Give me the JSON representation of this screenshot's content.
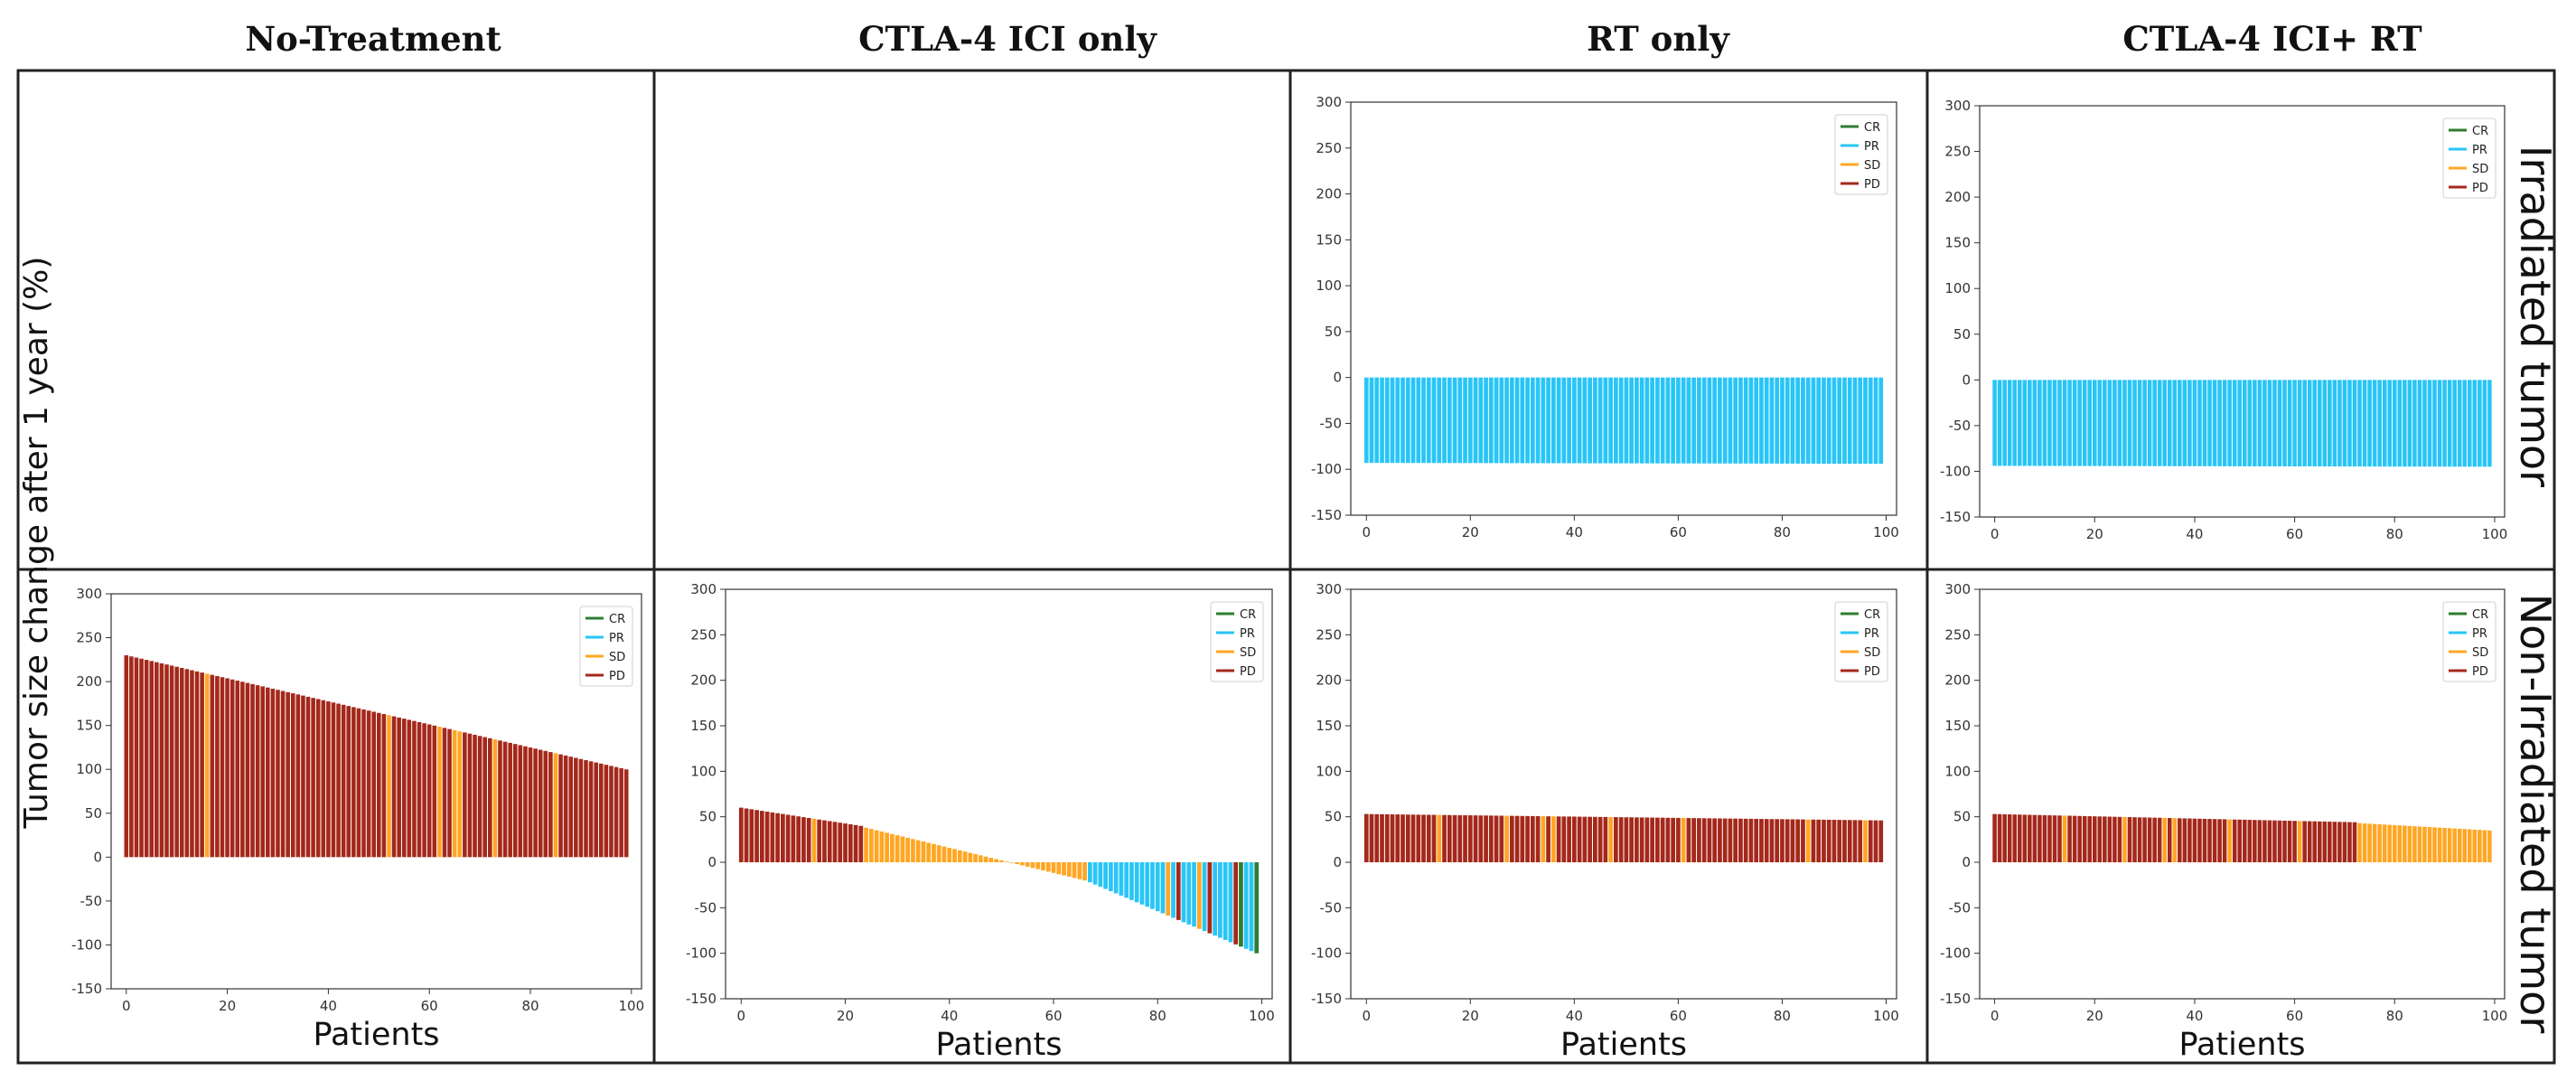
{
  "figure": {
    "column_titles": [
      "No-Treatment",
      "CTLA-4 ICI only",
      "RT only",
      "CTLA-4 ICI+ RT"
    ],
    "row_labels": [
      "Irradiated tumor",
      "Non-Irradiated tumor"
    ],
    "y_label": "Tumor size change after 1 year (%)"
  },
  "colors": {
    "CR": "#2e7d32",
    "PR": "#29c5f6",
    "SD": "#ffa623",
    "PD": "#a4281b"
  },
  "chart_data": [
    {
      "id": "rt-irradiated",
      "type": "bar",
      "column": "RT only",
      "row": "Irradiated tumor",
      "xlabel": "",
      "ylabel": "",
      "ylim": [
        -150,
        300
      ],
      "xlim": [
        -3,
        102
      ],
      "yticks": [
        "300",
        "250",
        "200",
        "150",
        "100",
        "50",
        "0",
        "-50",
        "-100",
        "-150"
      ],
      "xticks": [
        "0",
        "20",
        "40",
        "60",
        "80",
        "100"
      ],
      "legend": [
        "CR",
        "PR",
        "SD",
        "PD"
      ],
      "legend_position": "top-right",
      "n_patients": 100,
      "series": [
        {
          "name": "tumor size change (%)",
          "start": -93,
          "end": -94,
          "category": "PR"
        }
      ]
    },
    {
      "id": "ici-rt-irradiated",
      "type": "bar",
      "column": "CTLA-4 ICI+ RT",
      "row": "Irradiated tumor",
      "xlabel": "",
      "ylabel": "",
      "ylim": [
        -150,
        300
      ],
      "xlim": [
        -3,
        102
      ],
      "yticks": [
        "300",
        "250",
        "200",
        "150",
        "100",
        "50",
        "0",
        "-50",
        "-100",
        "-150"
      ],
      "xticks": [
        "0",
        "20",
        "40",
        "60",
        "80",
        "100"
      ],
      "legend": [
        "CR",
        "PR",
        "SD",
        "PD"
      ],
      "legend_position": "top-right",
      "n_patients": 100,
      "series": [
        {
          "name": "tumor size change (%)",
          "start": -94,
          "end": -95,
          "category": "PR"
        }
      ]
    },
    {
      "id": "no-treatment-nonirradiated",
      "type": "bar",
      "column": "No-Treatment",
      "row": "Non-Irradiated tumor",
      "xlabel": "Patients",
      "ylabel": "",
      "ylim": [
        -150,
        300
      ],
      "xlim": [
        -3,
        102
      ],
      "yticks": [
        "300",
        "250",
        "200",
        "150",
        "100",
        "50",
        "0",
        "-50",
        "-100",
        "-150"
      ],
      "xticks": [
        "0",
        "20",
        "40",
        "60",
        "80",
        "100"
      ],
      "legend": [
        "CR",
        "PR",
        "SD",
        "PD"
      ],
      "legend_position": "top-right",
      "n_patients": 100,
      "series": [
        {
          "name": "tumor size change (%)",
          "start": 230,
          "end": 100,
          "category": "PD",
          "exceptions": [
            {
              "category": "SD",
              "indices": [
                16,
                52,
                62,
                65,
                66,
                73,
                85
              ]
            }
          ]
        }
      ]
    },
    {
      "id": "ici-nonirradiated",
      "type": "bar",
      "column": "CTLA-4 ICI only",
      "row": "Non-Irradiated tumor",
      "xlabel": "Patients",
      "ylabel": "",
      "ylim": [
        -150,
        300
      ],
      "xlim": [
        -3,
        102
      ],
      "yticks": [
        "300",
        "250",
        "200",
        "150",
        "100",
        "50",
        "0",
        "-50",
        "-100",
        "-150"
      ],
      "xticks": [
        "0",
        "20",
        "40",
        "60",
        "80",
        "100"
      ],
      "legend": [
        "CR",
        "PR",
        "SD",
        "PD"
      ],
      "legend_position": "top-right",
      "n_patients": 100,
      "segments": [
        {
          "from": 0,
          "to": 23,
          "start": 60,
          "end": 40,
          "category": "PD"
        },
        {
          "from": 24,
          "to": 66,
          "start": 38,
          "end": -20,
          "category": "SD"
        },
        {
          "from": 67,
          "to": 99,
          "start": -22,
          "end": -100,
          "category": "PR"
        }
      ],
      "exceptions": [
        {
          "category": "SD",
          "indices": [
            14
          ]
        },
        {
          "category": "SD",
          "indices": [
            82,
            88
          ]
        },
        {
          "category": "PD",
          "indices": [
            84,
            90,
            95
          ]
        },
        {
          "category": "CR",
          "indices": [
            96,
            99
          ]
        }
      ]
    },
    {
      "id": "rt-nonirradiated",
      "type": "bar",
      "column": "RT only",
      "row": "Non-Irradiated tumor",
      "xlabel": "Patients",
      "ylabel": "",
      "ylim": [
        -150,
        300
      ],
      "xlim": [
        -3,
        102
      ],
      "yticks": [
        "300",
        "250",
        "200",
        "150",
        "100",
        "50",
        "0",
        "-50",
        "-100",
        "-150"
      ],
      "xticks": [
        "0",
        "20",
        "40",
        "60",
        "80",
        "100"
      ],
      "legend": [
        "CR",
        "PR",
        "SD",
        "PD"
      ],
      "legend_position": "top-right",
      "n_patients": 100,
      "series": [
        {
          "name": "tumor size change (%)",
          "start": 53,
          "end": 46,
          "category": "PD",
          "exceptions": [
            {
              "category": "SD",
              "indices": [
                14,
                27,
                34,
                36,
                47,
                61,
                85,
                96
              ]
            }
          ]
        }
      ]
    },
    {
      "id": "ici-rt-nonirradiated",
      "type": "bar",
      "column": "CTLA-4 ICI+ RT",
      "row": "Non-Irradiated tumor",
      "xlabel": "Patients",
      "ylabel": "",
      "ylim": [
        -150,
        300
      ],
      "xlim": [
        -3,
        102
      ],
      "yticks": [
        "300",
        "250",
        "200",
        "150",
        "100",
        "50",
        "0",
        "-50",
        "-100",
        "-150"
      ],
      "xticks": [
        "0",
        "20",
        "40",
        "60",
        "80",
        "100"
      ],
      "legend": [
        "CR",
        "PR",
        "SD",
        "PD"
      ],
      "legend_position": "top-right",
      "n_patients": 100,
      "segments": [
        {
          "from": 0,
          "to": 72,
          "start": 53,
          "end": 44,
          "category": "PD"
        },
        {
          "from": 73,
          "to": 99,
          "start": 43,
          "end": 35,
          "category": "SD"
        }
      ],
      "exceptions": [
        {
          "category": "SD",
          "indices": [
            14,
            26,
            34,
            36,
            47,
            61
          ]
        }
      ]
    }
  ]
}
